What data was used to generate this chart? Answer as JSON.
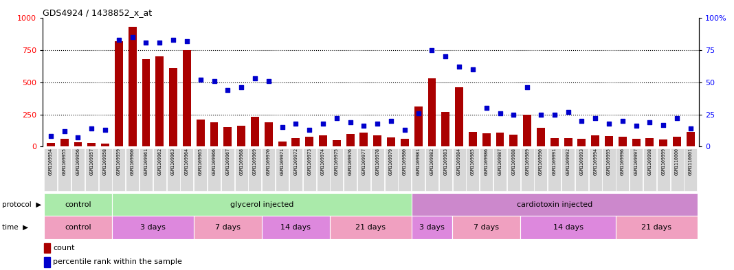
{
  "title": "GDS4924 / 1438852_x_at",
  "samples": [
    "GSM1109954",
    "GSM1109955",
    "GSM1109956",
    "GSM1109957",
    "GSM1109958",
    "GSM1109959",
    "GSM1109960",
    "GSM1109961",
    "GSM1109962",
    "GSM1109963",
    "GSM1109964",
    "GSM1109965",
    "GSM1109966",
    "GSM1109967",
    "GSM1109968",
    "GSM1109969",
    "GSM1109970",
    "GSM1109971",
    "GSM1109972",
    "GSM1109973",
    "GSM1109974",
    "GSM1109975",
    "GSM1109976",
    "GSM1109977",
    "GSM1109978",
    "GSM1109979",
    "GSM1109980",
    "GSM1109981",
    "GSM1109982",
    "GSM1109983",
    "GSM1109984",
    "GSM1109985",
    "GSM1109986",
    "GSM1109987",
    "GSM1109988",
    "GSM1109989",
    "GSM1109990",
    "GSM1109991",
    "GSM1109992",
    "GSM1109993",
    "GSM1109994",
    "GSM1109995",
    "GSM1109996",
    "GSM1109997",
    "GSM1109998",
    "GSM1109999",
    "GSM1110000",
    "GSM1110001"
  ],
  "bar_values": [
    30,
    60,
    35,
    30,
    25,
    820,
    930,
    680,
    700,
    610,
    750,
    210,
    190,
    150,
    160,
    230,
    190,
    40,
    65,
    75,
    90,
    50,
    100,
    110,
    85,
    70,
    60,
    310,
    530,
    270,
    460,
    115,
    105,
    110,
    95,
    245,
    145,
    65,
    65,
    60,
    90,
    80,
    75,
    60,
    65,
    55,
    75,
    115
  ],
  "percentile_values": [
    8,
    12,
    7,
    14,
    13,
    83,
    85,
    81,
    81,
    83,
    82,
    52,
    51,
    44,
    46,
    53,
    51,
    15,
    18,
    13,
    18,
    22,
    19,
    16,
    18,
    20,
    13,
    26,
    75,
    70,
    62,
    60,
    30,
    26,
    25,
    46,
    25,
    25,
    27,
    20,
    22,
    18,
    20,
    16,
    19,
    17,
    22,
    14
  ],
  "protocol_groups": [
    {
      "label": "control",
      "start": 0,
      "end": 4,
      "color": "#aaeaaa"
    },
    {
      "label": "glycerol injected",
      "start": 5,
      "end": 26,
      "color": "#aaeaaa"
    },
    {
      "label": "cardiotoxin injected",
      "start": 27,
      "end": 47,
      "color": "#cc88cc"
    }
  ],
  "time_groups": [
    {
      "label": "control",
      "start": 0,
      "end": 4,
      "color": "#f0a0c0"
    },
    {
      "label": "3 days",
      "start": 5,
      "end": 10,
      "color": "#dd88dd"
    },
    {
      "label": "7 days",
      "start": 11,
      "end": 15,
      "color": "#f0a0c0"
    },
    {
      "label": "14 days",
      "start": 16,
      "end": 20,
      "color": "#dd88dd"
    },
    {
      "label": "21 days",
      "start": 21,
      "end": 26,
      "color": "#f0a0c0"
    },
    {
      "label": "3 days",
      "start": 27,
      "end": 29,
      "color": "#dd88dd"
    },
    {
      "label": "7 days",
      "start": 30,
      "end": 34,
      "color": "#f0a0c0"
    },
    {
      "label": "14 days",
      "start": 35,
      "end": 41,
      "color": "#dd88dd"
    },
    {
      "label": "21 days",
      "start": 42,
      "end": 47,
      "color": "#f0a0c0"
    }
  ],
  "bar_color": "#AA0000",
  "dot_color": "#0000CC",
  "bg_color": "#ffffff",
  "xticklabel_bg": "#d8d8d8",
  "ylim_left": [
    0,
    1000
  ],
  "ylim_right": [
    0,
    100
  ],
  "yticks_left": [
    0,
    250,
    500,
    750,
    1000
  ],
  "yticks_right": [
    0,
    25,
    50,
    75,
    100
  ],
  "ytick_labels_right": [
    "0",
    "25",
    "50",
    "75",
    "100%"
  ]
}
